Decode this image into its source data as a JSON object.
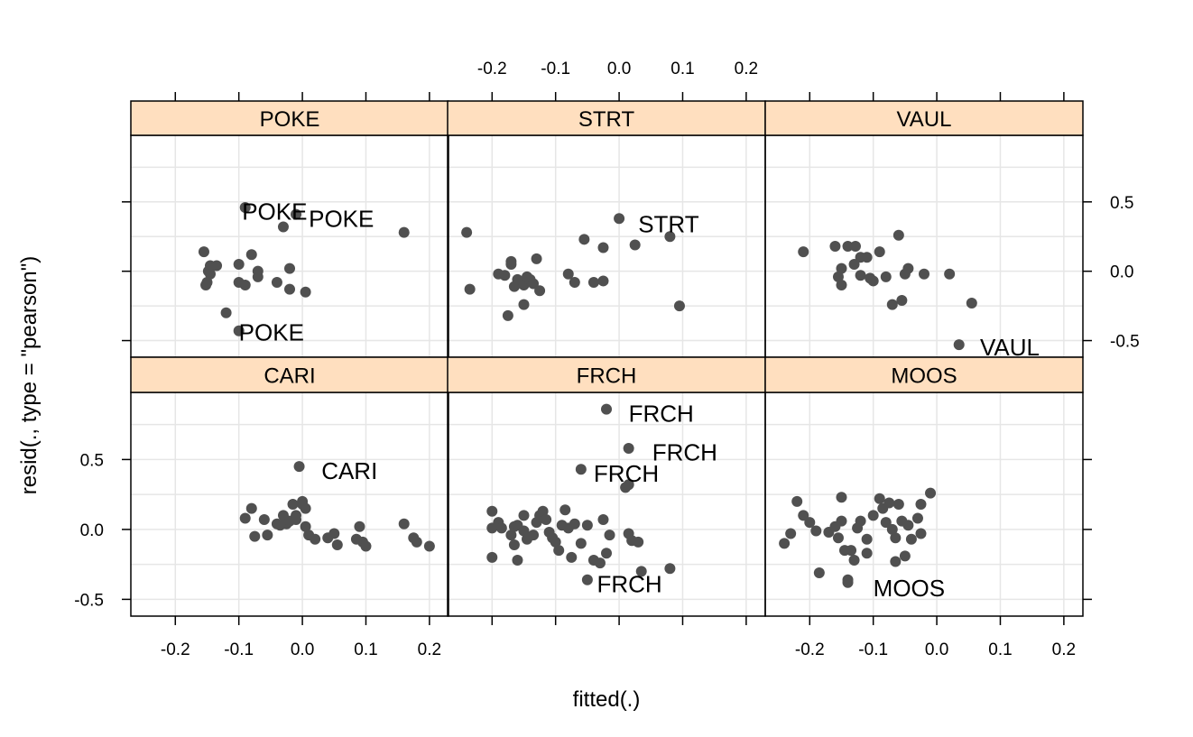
{
  "chart_data": {
    "type": "scatter",
    "xlabel": "fitted(.)",
    "ylabel": "resid(., type = \"pearson\")",
    "xlim": [
      -0.27,
      0.23
    ],
    "ylim": [
      -0.62,
      0.98
    ],
    "x_ticks": [
      -0.2,
      -0.1,
      0.0,
      0.1,
      0.2
    ],
    "y_ticks": [
      -0.5,
      0.0,
      0.5
    ],
    "x_tick_labels": [
      "-0.2",
      "-0.1",
      "0.0",
      "0.1",
      "0.2"
    ],
    "y_tick_labels": [
      "-0.5",
      "0.0",
      "0.5"
    ],
    "grid": true,
    "colors": {
      "point": "#505050",
      "strip": "#ffdfbf",
      "grid": "#e6e6e6",
      "frame": "#000000"
    },
    "panels": [
      {
        "name": "POKE",
        "points": [
          [
            -0.155,
            0.14
          ],
          [
            -0.145,
            0.04
          ],
          [
            -0.135,
            0.04
          ],
          [
            -0.148,
            0.0
          ],
          [
            -0.145,
            -0.02
          ],
          [
            -0.15,
            -0.08
          ],
          [
            -0.152,
            -0.1
          ],
          [
            -0.09,
            0.46
          ],
          [
            -0.1,
            0.05
          ],
          [
            -0.08,
            0.12
          ],
          [
            -0.07,
            0.0
          ],
          [
            -0.07,
            -0.04
          ],
          [
            -0.1,
            -0.08
          ],
          [
            -0.09,
            -0.1
          ],
          [
            -0.04,
            -0.08
          ],
          [
            -0.02,
            0.02
          ],
          [
            -0.02,
            -0.13
          ],
          [
            0.005,
            -0.15
          ],
          [
            -0.03,
            0.32
          ],
          [
            -0.01,
            0.41
          ],
          [
            0.16,
            0.28
          ],
          [
            -0.12,
            -0.3
          ],
          [
            -0.1,
            -0.43
          ]
        ],
        "labels": [
          {
            "text": "POKE",
            "x": -0.095,
            "y": 0.43
          },
          {
            "text": "POKE",
            "x": 0.01,
            "y": 0.38
          },
          {
            "text": "POKE",
            "x": -0.1,
            "y": -0.44
          }
        ]
      },
      {
        "name": "STRT",
        "points": [
          [
            -0.24,
            0.28
          ],
          [
            -0.235,
            -0.13
          ],
          [
            -0.19,
            -0.02
          ],
          [
            -0.18,
            -0.03
          ],
          [
            -0.17,
            0.05
          ],
          [
            -0.17,
            0.07
          ],
          [
            -0.165,
            -0.11
          ],
          [
            -0.16,
            -0.06
          ],
          [
            -0.15,
            -0.1
          ],
          [
            -0.145,
            -0.04
          ],
          [
            -0.14,
            -0.06
          ],
          [
            -0.135,
            -0.09
          ],
          [
            -0.13,
            0.09
          ],
          [
            -0.125,
            -0.14
          ],
          [
            -0.15,
            -0.24
          ],
          [
            -0.175,
            -0.32
          ],
          [
            -0.08,
            -0.02
          ],
          [
            -0.07,
            -0.08
          ],
          [
            -0.055,
            0.23
          ],
          [
            -0.04,
            -0.08
          ],
          [
            -0.025,
            0.17
          ],
          [
            -0.025,
            -0.07
          ],
          [
            0.0,
            0.38
          ],
          [
            0.025,
            0.19
          ],
          [
            0.08,
            0.25
          ],
          [
            0.095,
            -0.25
          ]
        ],
        "labels": [
          {
            "text": "STRT",
            "x": 0.03,
            "y": 0.34
          }
        ]
      },
      {
        "name": "VAUL",
        "points": [
          [
            -0.21,
            0.14
          ],
          [
            -0.16,
            0.18
          ],
          [
            -0.155,
            -0.04
          ],
          [
            -0.15,
            0.02
          ],
          [
            -0.15,
            -0.1
          ],
          [
            -0.14,
            0.18
          ],
          [
            -0.13,
            0.05
          ],
          [
            -0.128,
            0.18
          ],
          [
            -0.12,
            0.1
          ],
          [
            -0.12,
            -0.03
          ],
          [
            -0.11,
            0.1
          ],
          [
            -0.105,
            -0.05
          ],
          [
            -0.1,
            -0.07
          ],
          [
            -0.09,
            0.14
          ],
          [
            -0.08,
            -0.04
          ],
          [
            -0.07,
            -0.24
          ],
          [
            -0.06,
            0.26
          ],
          [
            -0.055,
            -0.21
          ],
          [
            -0.05,
            -0.02
          ],
          [
            -0.045,
            0.02
          ],
          [
            -0.02,
            -0.02
          ],
          [
            0.02,
            -0.02
          ],
          [
            0.055,
            -0.23
          ],
          [
            0.035,
            -0.53
          ]
        ],
        "labels": [
          {
            "text": "VAUL",
            "x": 0.068,
            "y": -0.55
          }
        ]
      },
      {
        "name": "CARI",
        "points": [
          [
            -0.09,
            0.08
          ],
          [
            -0.08,
            0.15
          ],
          [
            -0.075,
            -0.05
          ],
          [
            -0.06,
            0.07
          ],
          [
            -0.055,
            -0.04
          ],
          [
            -0.04,
            0.04
          ],
          [
            -0.035,
            0.03
          ],
          [
            -0.03,
            0.1
          ],
          [
            -0.025,
            0.04
          ],
          [
            -0.02,
            0.06
          ],
          [
            -0.015,
            0.18
          ],
          [
            -0.01,
            0.1
          ],
          [
            -0.01,
            0.07
          ],
          [
            0.0,
            0.2
          ],
          [
            0.005,
            0.15
          ],
          [
            0.0,
            0.18
          ],
          [
            0.005,
            0.02
          ],
          [
            0.01,
            -0.04
          ],
          [
            0.02,
            -0.07
          ],
          [
            0.04,
            -0.06
          ],
          [
            0.05,
            -0.03
          ],
          [
            0.055,
            -0.11
          ],
          [
            0.085,
            -0.07
          ],
          [
            0.09,
            0.02
          ],
          [
            0.095,
            -0.09
          ],
          [
            0.1,
            -0.12
          ],
          [
            0.16,
            0.04
          ],
          [
            0.175,
            -0.06
          ],
          [
            0.18,
            -0.09
          ],
          [
            0.2,
            -0.12
          ],
          [
            -0.005,
            0.45
          ]
        ],
        "labels": [
          {
            "text": "CARI",
            "x": 0.03,
            "y": 0.42
          }
        ]
      },
      {
        "name": "FRCH",
        "points": [
          [
            -0.2,
            0.13
          ],
          [
            -0.2,
            0.01
          ],
          [
            -0.19,
            0.05
          ],
          [
            -0.185,
            0.01
          ],
          [
            -0.17,
            -0.04
          ],
          [
            -0.165,
            0.02
          ],
          [
            -0.165,
            -0.11
          ],
          [
            -0.16,
            0.03
          ],
          [
            -0.15,
            0.1
          ],
          [
            -0.15,
            -0.01
          ],
          [
            -0.145,
            -0.07
          ],
          [
            -0.135,
            -0.04
          ],
          [
            -0.13,
            0.05
          ],
          [
            -0.125,
            0.1
          ],
          [
            -0.12,
            0.13
          ],
          [
            -0.115,
            0.07
          ],
          [
            -0.11,
            -0.02
          ],
          [
            -0.105,
            -0.06
          ],
          [
            -0.1,
            -0.09
          ],
          [
            -0.095,
            -0.15
          ],
          [
            -0.09,
            0.03
          ],
          [
            -0.085,
            0.14
          ],
          [
            -0.08,
            0.01
          ],
          [
            -0.075,
            -0.2
          ],
          [
            -0.07,
            0.04
          ],
          [
            -0.06,
            -0.1
          ],
          [
            -0.05,
            0.03
          ],
          [
            -0.04,
            -0.22
          ],
          [
            -0.03,
            -0.24
          ],
          [
            -0.025,
            0.07
          ],
          [
            -0.02,
            -0.17
          ],
          [
            -0.015,
            -0.04
          ],
          [
            0.015,
            -0.03
          ],
          [
            0.02,
            -0.08
          ],
          [
            0.03,
            -0.09
          ],
          [
            0.035,
            -0.3
          ],
          [
            0.08,
            -0.28
          ],
          [
            -0.2,
            -0.2
          ],
          [
            -0.16,
            -0.22
          ],
          [
            -0.06,
            0.43
          ],
          [
            -0.05,
            -0.36
          ],
          [
            0.01,
            0.3
          ],
          [
            0.015,
            0.32
          ],
          [
            0.015,
            0.58
          ],
          [
            -0.02,
            0.86
          ]
        ],
        "labels": [
          {
            "text": "FRCH",
            "x": 0.015,
            "y": 0.83
          },
          {
            "text": "FRCH",
            "x": 0.052,
            "y": 0.55
          },
          {
            "text": "FRCH",
            "x": -0.04,
            "y": 0.4
          },
          {
            "text": "FRCH",
            "x": -0.035,
            "y": -0.39
          }
        ]
      },
      {
        "name": "MOOS",
        "points": [
          [
            -0.24,
            -0.1
          ],
          [
            -0.23,
            -0.03
          ],
          [
            -0.22,
            0.2
          ],
          [
            -0.21,
            0.1
          ],
          [
            -0.2,
            0.05
          ],
          [
            -0.19,
            -0.01
          ],
          [
            -0.185,
            -0.31
          ],
          [
            -0.17,
            -0.02
          ],
          [
            -0.16,
            0.02
          ],
          [
            -0.155,
            -0.06
          ],
          [
            -0.15,
            0.23
          ],
          [
            -0.145,
            -0.15
          ],
          [
            -0.14,
            -0.36
          ],
          [
            -0.14,
            -0.38
          ],
          [
            -0.135,
            -0.15
          ],
          [
            -0.13,
            -0.22
          ],
          [
            -0.125,
            0.01
          ],
          [
            -0.12,
            0.06
          ],
          [
            -0.11,
            -0.17
          ],
          [
            -0.1,
            0.1
          ],
          [
            -0.09,
            0.22
          ],
          [
            -0.085,
            0.15
          ],
          [
            -0.08,
            0.05
          ],
          [
            -0.075,
            0.19
          ],
          [
            -0.07,
            0.0
          ],
          [
            -0.065,
            -0.06
          ],
          [
            -0.06,
            0.18
          ],
          [
            -0.055,
            0.06
          ],
          [
            -0.05,
            -0.19
          ],
          [
            -0.045,
            0.03
          ],
          [
            -0.04,
            -0.07
          ],
          [
            -0.03,
            0.08
          ],
          [
            -0.025,
            -0.03
          ],
          [
            -0.01,
            0.26
          ],
          [
            -0.025,
            0.18
          ],
          [
            -0.15,
            0.06
          ],
          [
            -0.065,
            -0.23
          ],
          [
            -0.11,
            -0.07
          ]
        ],
        "labels": [
          {
            "text": "MOOS",
            "x": -0.1,
            "y": -0.42
          }
        ]
      }
    ]
  }
}
